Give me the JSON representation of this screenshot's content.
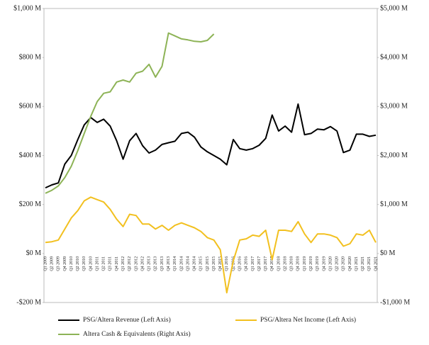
{
  "chart_data": {
    "type": "line",
    "categories": [
      "Q1 2009",
      "Q2 2009",
      "Q3 2009",
      "Q4 2009",
      "Q1 2010",
      "Q2 2010",
      "Q3 2010",
      "Q4 2010",
      "Q1 2011",
      "Q2 2011",
      "Q3 2011",
      "Q4 2011",
      "Q1 2012",
      "Q2 2012",
      "Q3 2012",
      "Q4 2012",
      "Q1 2013",
      "Q2 2013",
      "Q3 2013",
      "Q4 2013",
      "Q1 2014",
      "Q2 2014",
      "Q3 2014",
      "Q4 2014",
      "Q1 2015",
      "Q2 2015",
      "Q3 2015",
      "Q4 2015",
      "Q1 2016",
      "Q2 2016",
      "Q3 2016",
      "Q4 2016",
      "Q1 2017",
      "Q2 2017",
      "Q3 2017",
      "Q4 2017",
      "Q1 2018",
      "Q2 2018",
      "Q3 2018",
      "Q4 2018",
      "Q1 2019",
      "Q2 2019",
      "Q3 2019",
      "Q4 2019",
      "Q1 2020",
      "Q2 2020",
      "Q3 2020",
      "Q4 2020",
      "Q1 2021",
      "Q2 2021",
      "Q3 2021",
      "Q4 2021"
    ],
    "series": [
      {
        "name": "PSG/Altera Revenue (Left Axis)",
        "color": "#000000",
        "values": [
          268,
          280,
          288,
          365,
          400,
          465,
          525,
          555,
          535,
          548,
          520,
          460,
          385,
          460,
          490,
          440,
          410,
          422,
          445,
          452,
          458,
          490,
          495,
          475,
          435,
          415,
          400,
          385,
          362,
          465,
          428,
          422,
          428,
          442,
          470,
          565,
          500,
          520,
          495,
          610,
          485,
          490,
          508,
          505,
          518,
          500,
          412,
          422,
          487,
          487,
          478,
          483
        ]
      },
      {
        "name": "PSG/Altera Net Income (Left Axis)",
        "color": "#f2c01f",
        "values": [
          45,
          48,
          55,
          100,
          145,
          175,
          215,
          230,
          220,
          210,
          180,
          140,
          110,
          160,
          155,
          120,
          120,
          100,
          115,
          95,
          115,
          125,
          115,
          105,
          90,
          65,
          55,
          15,
          -160,
          -30,
          55,
          60,
          75,
          70,
          95,
          -25,
          95,
          95,
          90,
          130,
          80,
          45,
          80,
          80,
          75,
          65,
          30,
          40,
          80,
          75,
          95,
          45
        ]
      },
      {
        "name": "Altera Cash & Equivalents (Right Axis)",
        "color": "#8db356",
        "axis": "y2",
        "values": [
          1230,
          1290,
          1380,
          1550,
          1780,
          2100,
          2450,
          2800,
          3100,
          3270,
          3300,
          3500,
          3540,
          3500,
          3680,
          3720,
          3860,
          3600,
          3820,
          4500,
          4440,
          4380,
          4360,
          4330,
          4320,
          4350,
          4480,
          null,
          null,
          null,
          null,
          null,
          null,
          null,
          null,
          null,
          null,
          null,
          null,
          null,
          null,
          null,
          null,
          null,
          null,
          null,
          null,
          null,
          null,
          null,
          null,
          null
        ]
      }
    ],
    "ylim": [
      -200,
      1000
    ],
    "yticks": [
      {
        "value": -200,
        "label": "-$200 M"
      },
      {
        "value": 0,
        "label": "$0 M"
      },
      {
        "value": 200,
        "label": "$200 M"
      },
      {
        "value": 400,
        "label": "$400 M"
      },
      {
        "value": 600,
        "label": "$600 M"
      },
      {
        "value": 800,
        "label": "$800 M"
      },
      {
        "value": 1000,
        "label": "$1,000 M"
      }
    ],
    "y2lim": [
      -1000,
      5000
    ],
    "y2ticks": [
      {
        "value": -1000,
        "label": "-$1,000 M"
      },
      {
        "value": 0,
        "label": "$0 M"
      },
      {
        "value": 1000,
        "label": "$1,000 M"
      },
      {
        "value": 2000,
        "label": "$2,000 M"
      },
      {
        "value": 3000,
        "label": "$3,000 M"
      },
      {
        "value": 4000,
        "label": "$4,000 M"
      },
      {
        "value": 5000,
        "label": "$5,000 M"
      }
    ],
    "legend": "bottom"
  }
}
